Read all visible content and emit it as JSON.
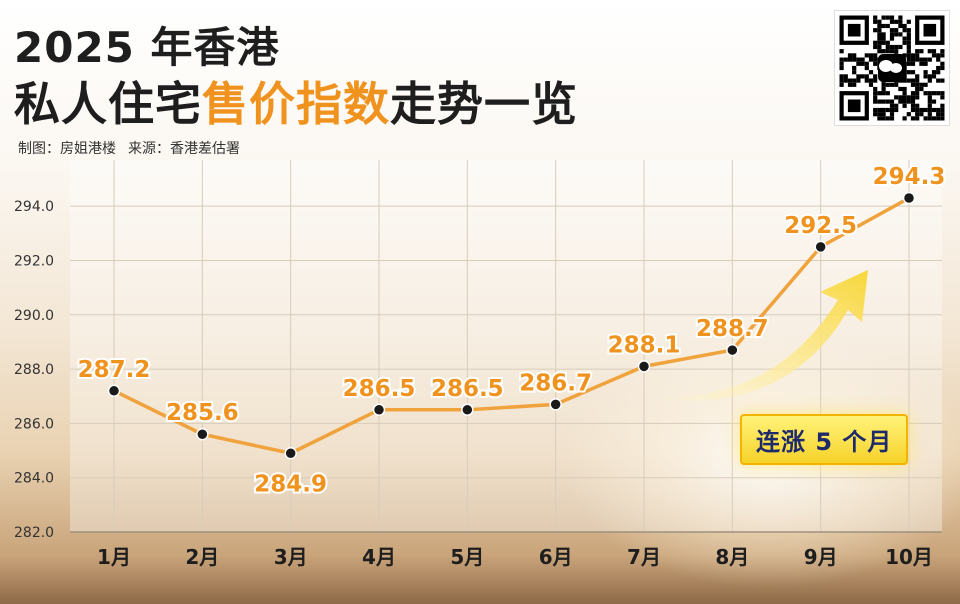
{
  "header": {
    "title_line1": "2025 年香港",
    "title_line2_pre": "私人住宅",
    "title_line2_highlight": "售价指数",
    "title_line2_post": "走势一览",
    "credit_author": "制图：房姐港楼",
    "credit_source": "来源：香港差估署"
  },
  "badge": {
    "label": "连涨 5 个月",
    "icon": "upward-arrow-icon"
  },
  "qr": {
    "icon": "wechat-qr-code"
  },
  "colors": {
    "accent": "#f0921e",
    "line": "#f0a23c",
    "point": "#1a1a1a",
    "title": "#1e1e1e",
    "badge_text": "#1f2a6b",
    "badge_bg": "#f6d22a"
  },
  "chart_data": {
    "type": "line",
    "title": "2025 年香港私人住宅售价指数走势一览",
    "categories": [
      "1月",
      "2月",
      "3月",
      "4月",
      "5月",
      "6月",
      "7月",
      "8月",
      "9月",
      "10月"
    ],
    "values": [
      287.2,
      285.6,
      284.9,
      286.5,
      286.5,
      286.7,
      288.1,
      288.7,
      292.5,
      294.3
    ],
    "data_labels": [
      "287.2",
      "285.6",
      "284.9",
      "286.5",
      "286.5",
      "286.7",
      "288.1",
      "288.7",
      "292.5",
      "294.3"
    ],
    "y_ticks": [
      "282.0",
      "284.0",
      "286.0",
      "288.0",
      "290.0",
      "292.0",
      "294.0"
    ],
    "y_tick_values": [
      282,
      284,
      286,
      288,
      290,
      292,
      294
    ],
    "ylim": [
      282,
      295.7
    ],
    "xlabel": "",
    "ylabel": "",
    "grid": true,
    "legend": "none"
  }
}
